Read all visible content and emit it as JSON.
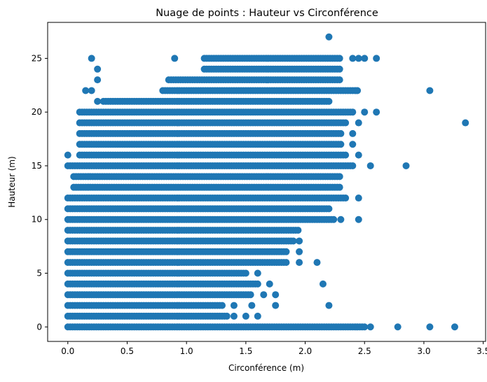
{
  "chart_data": {
    "type": "scatter",
    "title": "Nuage de points : Hauteur vs Circonférence",
    "xlabel": "Circonférence (m)",
    "ylabel": "Hauteur (m)",
    "xlim": [
      -0.17,
      3.52
    ],
    "ylim": [
      -1.35,
      28.35
    ],
    "xticks": [
      0.0,
      0.5,
      1.0,
      1.5,
      2.0,
      2.5,
      3.0,
      3.5
    ],
    "xtick_labels": [
      "0.0",
      "0.5",
      "1.0",
      "1.5",
      "2.0",
      "2.5",
      "3.0",
      "3.5"
    ],
    "yticks": [
      0,
      5,
      10,
      15,
      20,
      25
    ],
    "ytick_labels": [
      "0",
      "5",
      "10",
      "15",
      "20",
      "25"
    ],
    "grid": false,
    "color": "#1f77b4",
    "rows": [
      {
        "y": 0,
        "segments": [
          [
            0.0,
            2.5
          ]
        ],
        "points": [
          2.55,
          2.78,
          3.05,
          3.26
        ]
      },
      {
        "y": 1,
        "segments": [
          [
            0.0,
            1.35
          ]
        ],
        "points": [
          1.4,
          1.5,
          1.6
        ]
      },
      {
        "y": 2,
        "segments": [
          [
            0.0,
            1.3
          ]
        ],
        "points": [
          1.4,
          1.55,
          1.75,
          2.2
        ]
      },
      {
        "y": 3,
        "segments": [
          [
            0.0,
            1.55
          ]
        ],
        "points": [
          1.65,
          1.75
        ]
      },
      {
        "y": 4,
        "segments": [
          [
            0.0,
            1.6
          ]
        ],
        "points": [
          1.7,
          2.15
        ]
      },
      {
        "y": 5,
        "segments": [
          [
            0.0,
            1.5
          ]
        ],
        "points": [
          1.6
        ]
      },
      {
        "y": 6,
        "segments": [
          [
            0.0,
            1.85
          ]
        ],
        "points": [
          1.95,
          2.1
        ]
      },
      {
        "y": 7,
        "segments": [
          [
            0.0,
            1.85
          ]
        ],
        "points": [
          1.95
        ]
      },
      {
        "y": 8,
        "segments": [
          [
            0.0,
            1.9
          ]
        ],
        "points": [
          1.95
        ]
      },
      {
        "y": 9,
        "segments": [
          [
            0.0,
            1.95
          ]
        ],
        "points": []
      },
      {
        "y": 10,
        "segments": [
          [
            0.0,
            2.25
          ]
        ],
        "points": [
          2.3,
          2.45
        ]
      },
      {
        "y": 11,
        "segments": [
          [
            0.0,
            2.2
          ]
        ],
        "points": []
      },
      {
        "y": 12,
        "segments": [
          [
            0.0,
            2.35
          ]
        ],
        "points": [
          2.45
        ]
      },
      {
        "y": 13,
        "segments": [
          [
            0.05,
            2.3
          ]
        ],
        "points": []
      },
      {
        "y": 14,
        "segments": [
          [
            0.05,
            2.3
          ]
        ],
        "points": []
      },
      {
        "y": 15,
        "segments": [
          [
            0.0,
            2.4
          ]
        ],
        "points": [
          2.55,
          2.85
        ]
      },
      {
        "y": 16,
        "segments": [
          [
            0.1,
            2.35
          ]
        ],
        "points": [
          0.0,
          2.45
        ]
      },
      {
        "y": 17,
        "segments": [
          [
            0.1,
            2.3
          ]
        ],
        "points": [
          2.4
        ]
      },
      {
        "y": 18,
        "segments": [
          [
            0.1,
            2.3
          ]
        ],
        "points": [
          2.4
        ]
      },
      {
        "y": 19,
        "segments": [
          [
            0.1,
            2.35
          ]
        ],
        "points": [
          2.45,
          3.35
        ]
      },
      {
        "y": 20,
        "segments": [
          [
            0.1,
            2.4
          ]
        ],
        "points": [
          2.5,
          2.6
        ]
      },
      {
        "y": 21,
        "segments": [
          [
            0.3,
            2.2
          ]
        ],
        "points": [
          0.25
        ]
      },
      {
        "y": 22,
        "segments": [
          [
            0.8,
            2.45
          ]
        ],
        "points": [
          0.15,
          0.2,
          3.05
        ]
      },
      {
        "y": 23,
        "segments": [
          [
            0.85,
            2.3
          ]
        ],
        "points": [
          0.25
        ]
      },
      {
        "y": 24,
        "segments": [
          [
            1.15,
            2.3
          ]
        ],
        "points": [
          0.25
        ]
      },
      {
        "y": 25,
        "segments": [
          [
            1.15,
            2.3
          ]
        ],
        "points": [
          0.2,
          0.9,
          2.4,
          2.45,
          2.5,
          2.6
        ]
      },
      {
        "y": 27,
        "segments": [],
        "points": [
          2.2
        ]
      }
    ]
  }
}
